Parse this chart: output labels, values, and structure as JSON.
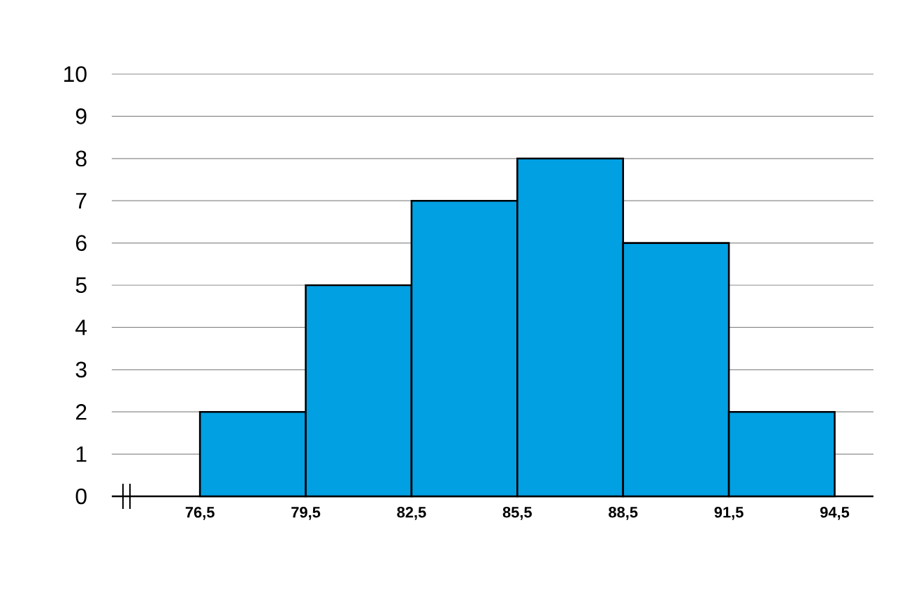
{
  "chart_data": {
    "type": "histogram",
    "bins": [
      76.5,
      79.5,
      82.5,
      85.5,
      88.5,
      91.5,
      94.5
    ],
    "values": [
      2,
      5,
      7,
      8,
      6,
      2
    ],
    "color": "#00a0e3",
    "xlim": [
      74,
      95.6
    ],
    "ylim": [
      0,
      10
    ],
    "xticks": [
      {
        "value": 76.5,
        "label": "76,5"
      },
      {
        "value": 79.5,
        "label": "79,5"
      },
      {
        "value": 82.5,
        "label": "82,5"
      },
      {
        "value": 85.5,
        "label": "85,5"
      },
      {
        "value": 88.5,
        "label": "88,5"
      },
      {
        "value": 91.5,
        "label": "91,5"
      },
      {
        "value": 94.5,
        "label": "94,5"
      }
    ],
    "yticks": [
      0,
      1,
      2,
      3,
      4,
      5,
      6,
      7,
      8,
      9,
      10
    ],
    "grid": "y"
  }
}
